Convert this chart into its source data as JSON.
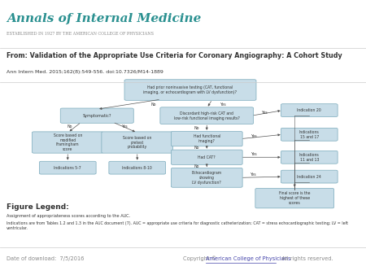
{
  "header_bg": "#e8e4d8",
  "header_title": "Annals of Internal Medicine",
  "header_subtitle": "ESTABLISHED IN 1927 BY THE AMERICAN COLLEGE OF PHYSICIANS",
  "header_title_color": "#2a9090",
  "header_subtitle_color": "#888888",
  "body_bg": "#ffffff",
  "article_from": "From: Validation of the Appropriate Use Criteria for Coronary Angiography: A Cohort Study",
  "citation": "Ann Intern Med. 2015;162(8):549-556. doi:10.7326/M14-1889",
  "figure_legend_title": "Figure Legend:",
  "figure_legend_line1": "Assignment of appropriateness scores according to the AUC.",
  "figure_legend_line2": "Indications are from Tables 1.2 and 1.3 in the AUC document (7). AUC = appropriate use criteria for diagnostic catheterization; CAT = stress echocardiographic testing; LV = left ventricular.",
  "footer_date": "Date of download:  7/5/2016",
  "footer_copy_pre": "Copyright © ",
  "footer_link_text": "American College of Physicians",
  "footer_copy_post": "   All rights reserved.",
  "footer_link_color": "#4444aa",
  "separator_color": "#cccccc",
  "text_color": "#333333",
  "footer_text_color": "#888888",
  "box_bg": "#c8dde8",
  "box_border": "#7aaabb",
  "arrow_color": "#555555"
}
